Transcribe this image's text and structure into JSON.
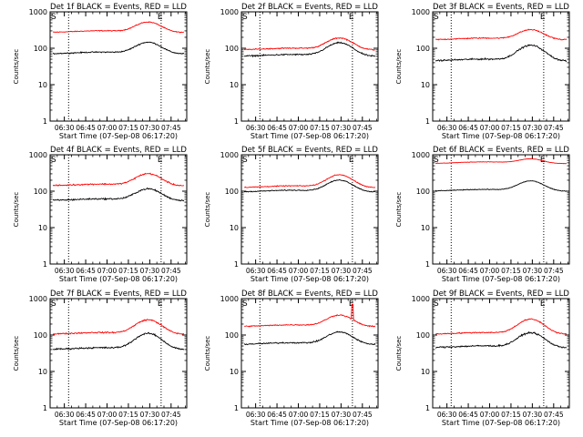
{
  "chart_data": {
    "type": "line",
    "x_ticks": [
      "06:30",
      "06:45",
      "07:00",
      "07:15",
      "07:30",
      "07:45"
    ],
    "x_range": [
      "06:20",
      "07:56"
    ],
    "y_ticks": [
      "1",
      "10",
      "100",
      "1000"
    ],
    "y_range": [
      1,
      1000
    ],
    "y_scale": "log",
    "ylabel": "Counts/sec",
    "xlabel": "Start Time (07-Sep-08 06:17:20)",
    "markers": {
      "S_time": "06:20",
      "E_time": "07:38",
      "dotted_lines": [
        "06:33",
        "07:38"
      ],
      "S_label": "S",
      "E_label": "E"
    },
    "grid": false,
    "series_colors": {
      "events": "#000000",
      "lld": "#ff0000"
    },
    "panels": [
      {
        "title": "Det 1f BLACK = Events, RED = LLD",
        "events": {
          "base": 70,
          "peak": 145,
          "noise": 0.05,
          "spike": 0
        },
        "lld": {
          "base": 270,
          "peak": 520,
          "noise": 0.04,
          "spike": 0
        }
      },
      {
        "title": "Det 2f BLACK = Events, RED = LLD",
        "events": {
          "base": 60,
          "peak": 140,
          "noise": 0.06,
          "spike": 0
        },
        "lld": {
          "base": 90,
          "peak": 190,
          "noise": 0.05,
          "spike": 0
        }
      },
      {
        "title": "Det 3f BLACK = Events, RED = LLD",
        "events": {
          "base": 45,
          "peak": 120,
          "noise": 0.07,
          "spike": 0
        },
        "lld": {
          "base": 170,
          "peak": 320,
          "noise": 0.05,
          "spike": 0
        }
      },
      {
        "title": "Det 4f BLACK = Events, RED = LLD",
        "events": {
          "base": 55,
          "peak": 115,
          "noise": 0.07,
          "spike": 0
        },
        "lld": {
          "base": 140,
          "peak": 300,
          "noise": 0.06,
          "spike": 0
        }
      },
      {
        "title": "Det 5f BLACK = Events, RED = LLD",
        "events": {
          "base": 95,
          "peak": 200,
          "noise": 0.04,
          "spike": 0
        },
        "lld": {
          "base": 125,
          "peak": 280,
          "noise": 0.04,
          "spike": 0
        }
      },
      {
        "title": "Det 6f BLACK = Events, RED = LLD",
        "events": {
          "base": 100,
          "peak": 190,
          "noise": 0.03,
          "spike": 0
        },
        "lld": {
          "base": 570,
          "peak": 760,
          "noise": 0.02,
          "spike": 0
        }
      },
      {
        "title": "Det 7f BLACK = Events, RED = LLD",
        "events": {
          "base": 40,
          "peak": 110,
          "noise": 0.07,
          "spike": 0
        },
        "lld": {
          "base": 105,
          "peak": 260,
          "noise": 0.06,
          "spike": 0
        }
      },
      {
        "title": "Det 8f BLACK = Events, RED = LLD",
        "events": {
          "base": 55,
          "peak": 120,
          "noise": 0.06,
          "spike": 0
        },
        "lld": {
          "base": 170,
          "peak": 350,
          "noise": 0.05,
          "spike": 700
        }
      },
      {
        "title": "Det 9f BLACK = Events, RED = LLD",
        "events": {
          "base": 45,
          "peak": 115,
          "noise": 0.07,
          "spike": 0
        },
        "lld": {
          "base": 105,
          "peak": 270,
          "noise": 0.05,
          "spike": 0
        }
      }
    ]
  }
}
